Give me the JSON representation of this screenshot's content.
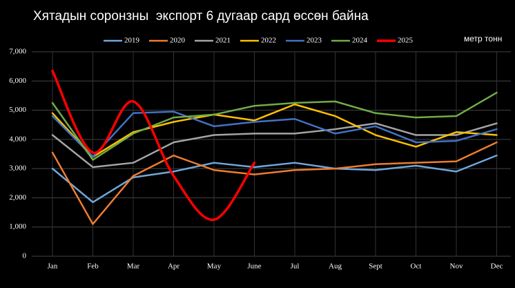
{
  "chart_data": {
    "type": "line",
    "title": "Хятадын соронзны  экспорт 6 дугаар сард өссөн байна",
    "y_label": "метр тонн",
    "categories": [
      "Jan",
      "Feb",
      "Mar",
      "Apr",
      "May",
      "June",
      "Jul",
      "Aug",
      "Sept",
      "Oct",
      "Nov",
      "Dec"
    ],
    "series": [
      {
        "name": "2019",
        "color": "#6fa8dc",
        "values": [
          3000,
          1850,
          2700,
          2900,
          3200,
          3050,
          3200,
          3000,
          2950,
          3100,
          2900,
          3450
        ]
      },
      {
        "name": "2020",
        "color": "#ed7d31",
        "values": [
          3550,
          1100,
          2750,
          3450,
          2950,
          2800,
          2950,
          3000,
          3150,
          3200,
          3250,
          3900
        ]
      },
      {
        "name": "2021",
        "color": "#a5a5a5",
        "values": [
          4150,
          3050,
          3200,
          3900,
          4150,
          4200,
          4200,
          4350,
          4550,
          4150,
          4150,
          4550
        ]
      },
      {
        "name": "2022",
        "color": "#ffc000",
        "values": [
          4900,
          3400,
          4250,
          4600,
          4850,
          4650,
          5200,
          4800,
          4150,
          3750,
          4250,
          4150
        ]
      },
      {
        "name": "2023",
        "color": "#4472c4",
        "values": [
          4800,
          3400,
          4900,
          4950,
          4450,
          4600,
          4700,
          4200,
          4450,
          3900,
          3950,
          4350
        ]
      },
      {
        "name": "2024",
        "color": "#70ad47",
        "values": [
          5250,
          3300,
          4200,
          4750,
          4850,
          5150,
          5250,
          5300,
          4900,
          4750,
          4800,
          5600
        ]
      },
      {
        "name": "2025",
        "color": "#ff0000",
        "smooth": true,
        "values": [
          6350,
          3550,
          5300,
          2750,
          1250,
          3200,
          null,
          null,
          null,
          null,
          null,
          null
        ]
      }
    ],
    "ylim": [
      0,
      7000
    ],
    "yticks": [
      0,
      {
        "value": 1000,
        "label": "1,000"
      },
      {
        "value": 2000,
        "label": "2,000"
      },
      {
        "value": 3000,
        "label": "3,000"
      },
      {
        "value": 4000,
        "label": "4,000"
      },
      {
        "value": 5000,
        "label": "5,000"
      },
      {
        "value": 6000,
        "label": "6,000"
      },
      {
        "value": 7000,
        "label": "7,000"
      }
    ],
    "grid": true,
    "legend": "top"
  }
}
